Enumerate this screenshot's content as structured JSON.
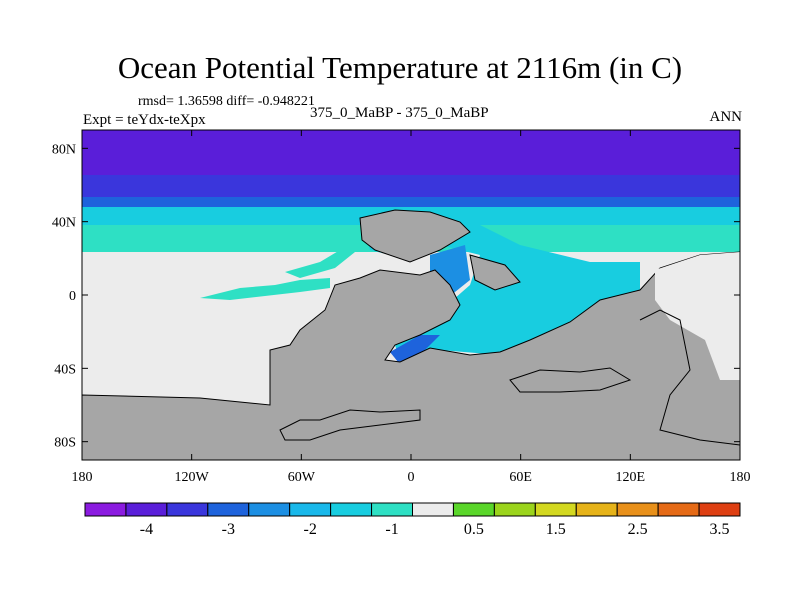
{
  "title": "Ocean Potential Temperature at 2116m (in C)",
  "stats": "rmsd= 1.36598 diff= -0.948221",
  "expt_label": "Expt = teYdx-teXpx",
  "case_label": "375_0_MaBP - 375_0_MaBP",
  "season": "ANN",
  "chart_data": {
    "type": "heatmap",
    "xlim": [
      -180,
      180
    ],
    "ylim": [
      -90,
      90
    ],
    "x_ticks": [
      {
        "value": -180,
        "label": "180"
      },
      {
        "value": -120,
        "label": "120W"
      },
      {
        "value": -60,
        "label": "60W"
      },
      {
        "value": 0,
        "label": "0"
      },
      {
        "value": 60,
        "label": "60E"
      },
      {
        "value": 120,
        "label": "120E"
      },
      {
        "value": 180,
        "label": "180"
      }
    ],
    "y_ticks": [
      {
        "value": 80,
        "label": "80N"
      },
      {
        "value": 40,
        "label": "40N"
      },
      {
        "value": 0,
        "label": "0"
      },
      {
        "value": -40,
        "label": "40S"
      },
      {
        "value": -80,
        "label": "80S"
      }
    ],
    "colorbar": {
      "colors": [
        "#8b1be0",
        "#5a1ed9",
        "#3a36dc",
        "#1e63dc",
        "#1c8fe3",
        "#19b8ea",
        "#18cde0",
        "#2ee0c4",
        "#ececec",
        "#5ad62a",
        "#9bd41c",
        "#d3d820",
        "#e6b319",
        "#e8901a",
        "#e56a16",
        "#de3f12"
      ],
      "tick_labels": [
        "-4",
        "-3",
        "-2",
        "-1",
        "0.5",
        "1.5",
        "2.5",
        "3.5"
      ]
    },
    "colors": {
      "land": "#a6a6a6",
      "zero_anomaly": "#ececec",
      "band_1": "#5a1ed9",
      "band_2": "#3a36dc",
      "band_3": "#1e63dc",
      "band_4": "#1c8fe3",
      "band_5": "#18cde0",
      "band_6": "#2ee0c4",
      "band_7": "#19b8ea"
    }
  }
}
